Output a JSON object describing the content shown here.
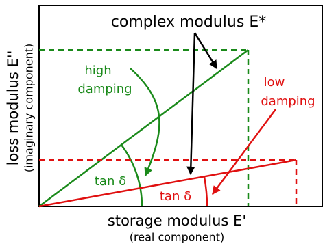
{
  "title": "complex modulus E*",
  "high_damping": {
    "lines": [
      "high",
      "damping"
    ],
    "angle_label": "tan δ"
  },
  "low_damping": {
    "lines": [
      "low",
      "damping"
    ],
    "angle_label": "tan δ"
  },
  "y_axis": {
    "label": "loss modulus E''",
    "sublabel": "(imaginary component)"
  },
  "x_axis": {
    "label": "storage modulus E'",
    "sublabel": "(real component)"
  }
}
